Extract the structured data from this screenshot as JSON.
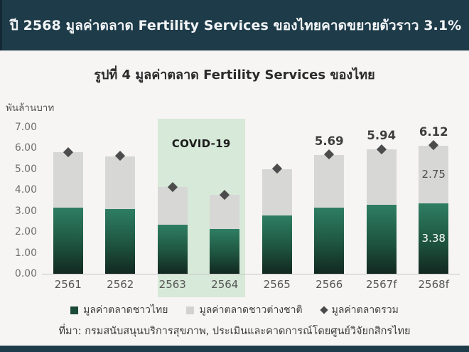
{
  "banner": {
    "title": "ปี 2568 มูลค่าตลาด Fertility Services ของไทยคาดขยายตัวราว 3.1%"
  },
  "figure": {
    "title": "รูปที่ 4 มูลค่าตลาด Fertility Services ของไทย",
    "unit_label": "พันล้านบาท",
    "source": "ที่มา: กรมสนับสนุนบริการสุขภาพ, ประเมินและคาดการณ์โดยศูนย์วิจัยกสิกรไทย"
  },
  "legend": {
    "items": [
      {
        "label": "มูลค่าตลาดชาวไทย",
        "swatch": "square",
        "color": "#1C4A3A"
      },
      {
        "label": "มูลค่าตลาดชาวต่างชาติ",
        "swatch": "square",
        "color": "#D2D2D2"
      },
      {
        "label": "มูลค่าตลาดรวม",
        "swatch": "diamond",
        "color": "#4A4A4A"
      }
    ]
  },
  "chart_data": {
    "type": "bar",
    "stacked": true,
    "title": "รูปที่ 4 มูลค่าตลาด Fertility Services ของไทย",
    "xlabel": "",
    "ylabel": "พันล้านบาท",
    "ylim": [
      0,
      7
    ],
    "ytick_labels": [
      "0.00",
      "1.00",
      "2.00",
      "3.00",
      "4.00",
      "5.00",
      "6.00",
      "7.00"
    ],
    "grid": false,
    "legend_position": "bottom",
    "categories": [
      "2561",
      "2562",
      "2563",
      "2564",
      "2565",
      "2566",
      "2567f",
      "2568f"
    ],
    "series": [
      {
        "name": "มูลค่าตลาดชาวไทย",
        "values": [
          3.17,
          3.1,
          2.35,
          2.15,
          2.78,
          3.15,
          3.29,
          3.38
        ],
        "value_labels": [
          "",
          "",
          "",
          "",
          "",
          "",
          "",
          "3.38"
        ]
      },
      {
        "name": "มูลค่าตลาดชาวต่างชาติ",
        "values": [
          2.63,
          2.51,
          1.78,
          1.61,
          2.23,
          2.54,
          2.65,
          2.75
        ],
        "value_labels": [
          "",
          "",
          "",
          "",
          "",
          "",
          "",
          "2.75"
        ]
      }
    ],
    "totals": {
      "name": "มูลค่าตลาดรวม",
      "marker": "diamond",
      "values": [
        5.8,
        5.61,
        4.13,
        3.76,
        5.01,
        5.69,
        5.94,
        6.12
      ],
      "labels": [
        "",
        "",
        "",
        "",
        "",
        "5.69",
        "5.94",
        "6.12"
      ]
    },
    "annotation": {
      "label": "COVID-19",
      "categories": [
        "2563",
        "2564"
      ]
    }
  },
  "colors": {
    "banner_bg": "#1E3B49",
    "page_bg": "#F6F5F4",
    "bar_green_top": "#2E7E63",
    "bar_green_bottom": "#122820",
    "bar_gray": "#D7D7D6",
    "diamond": "#4C4C4C",
    "covid_highlight_bg": "#D7E9D8"
  }
}
